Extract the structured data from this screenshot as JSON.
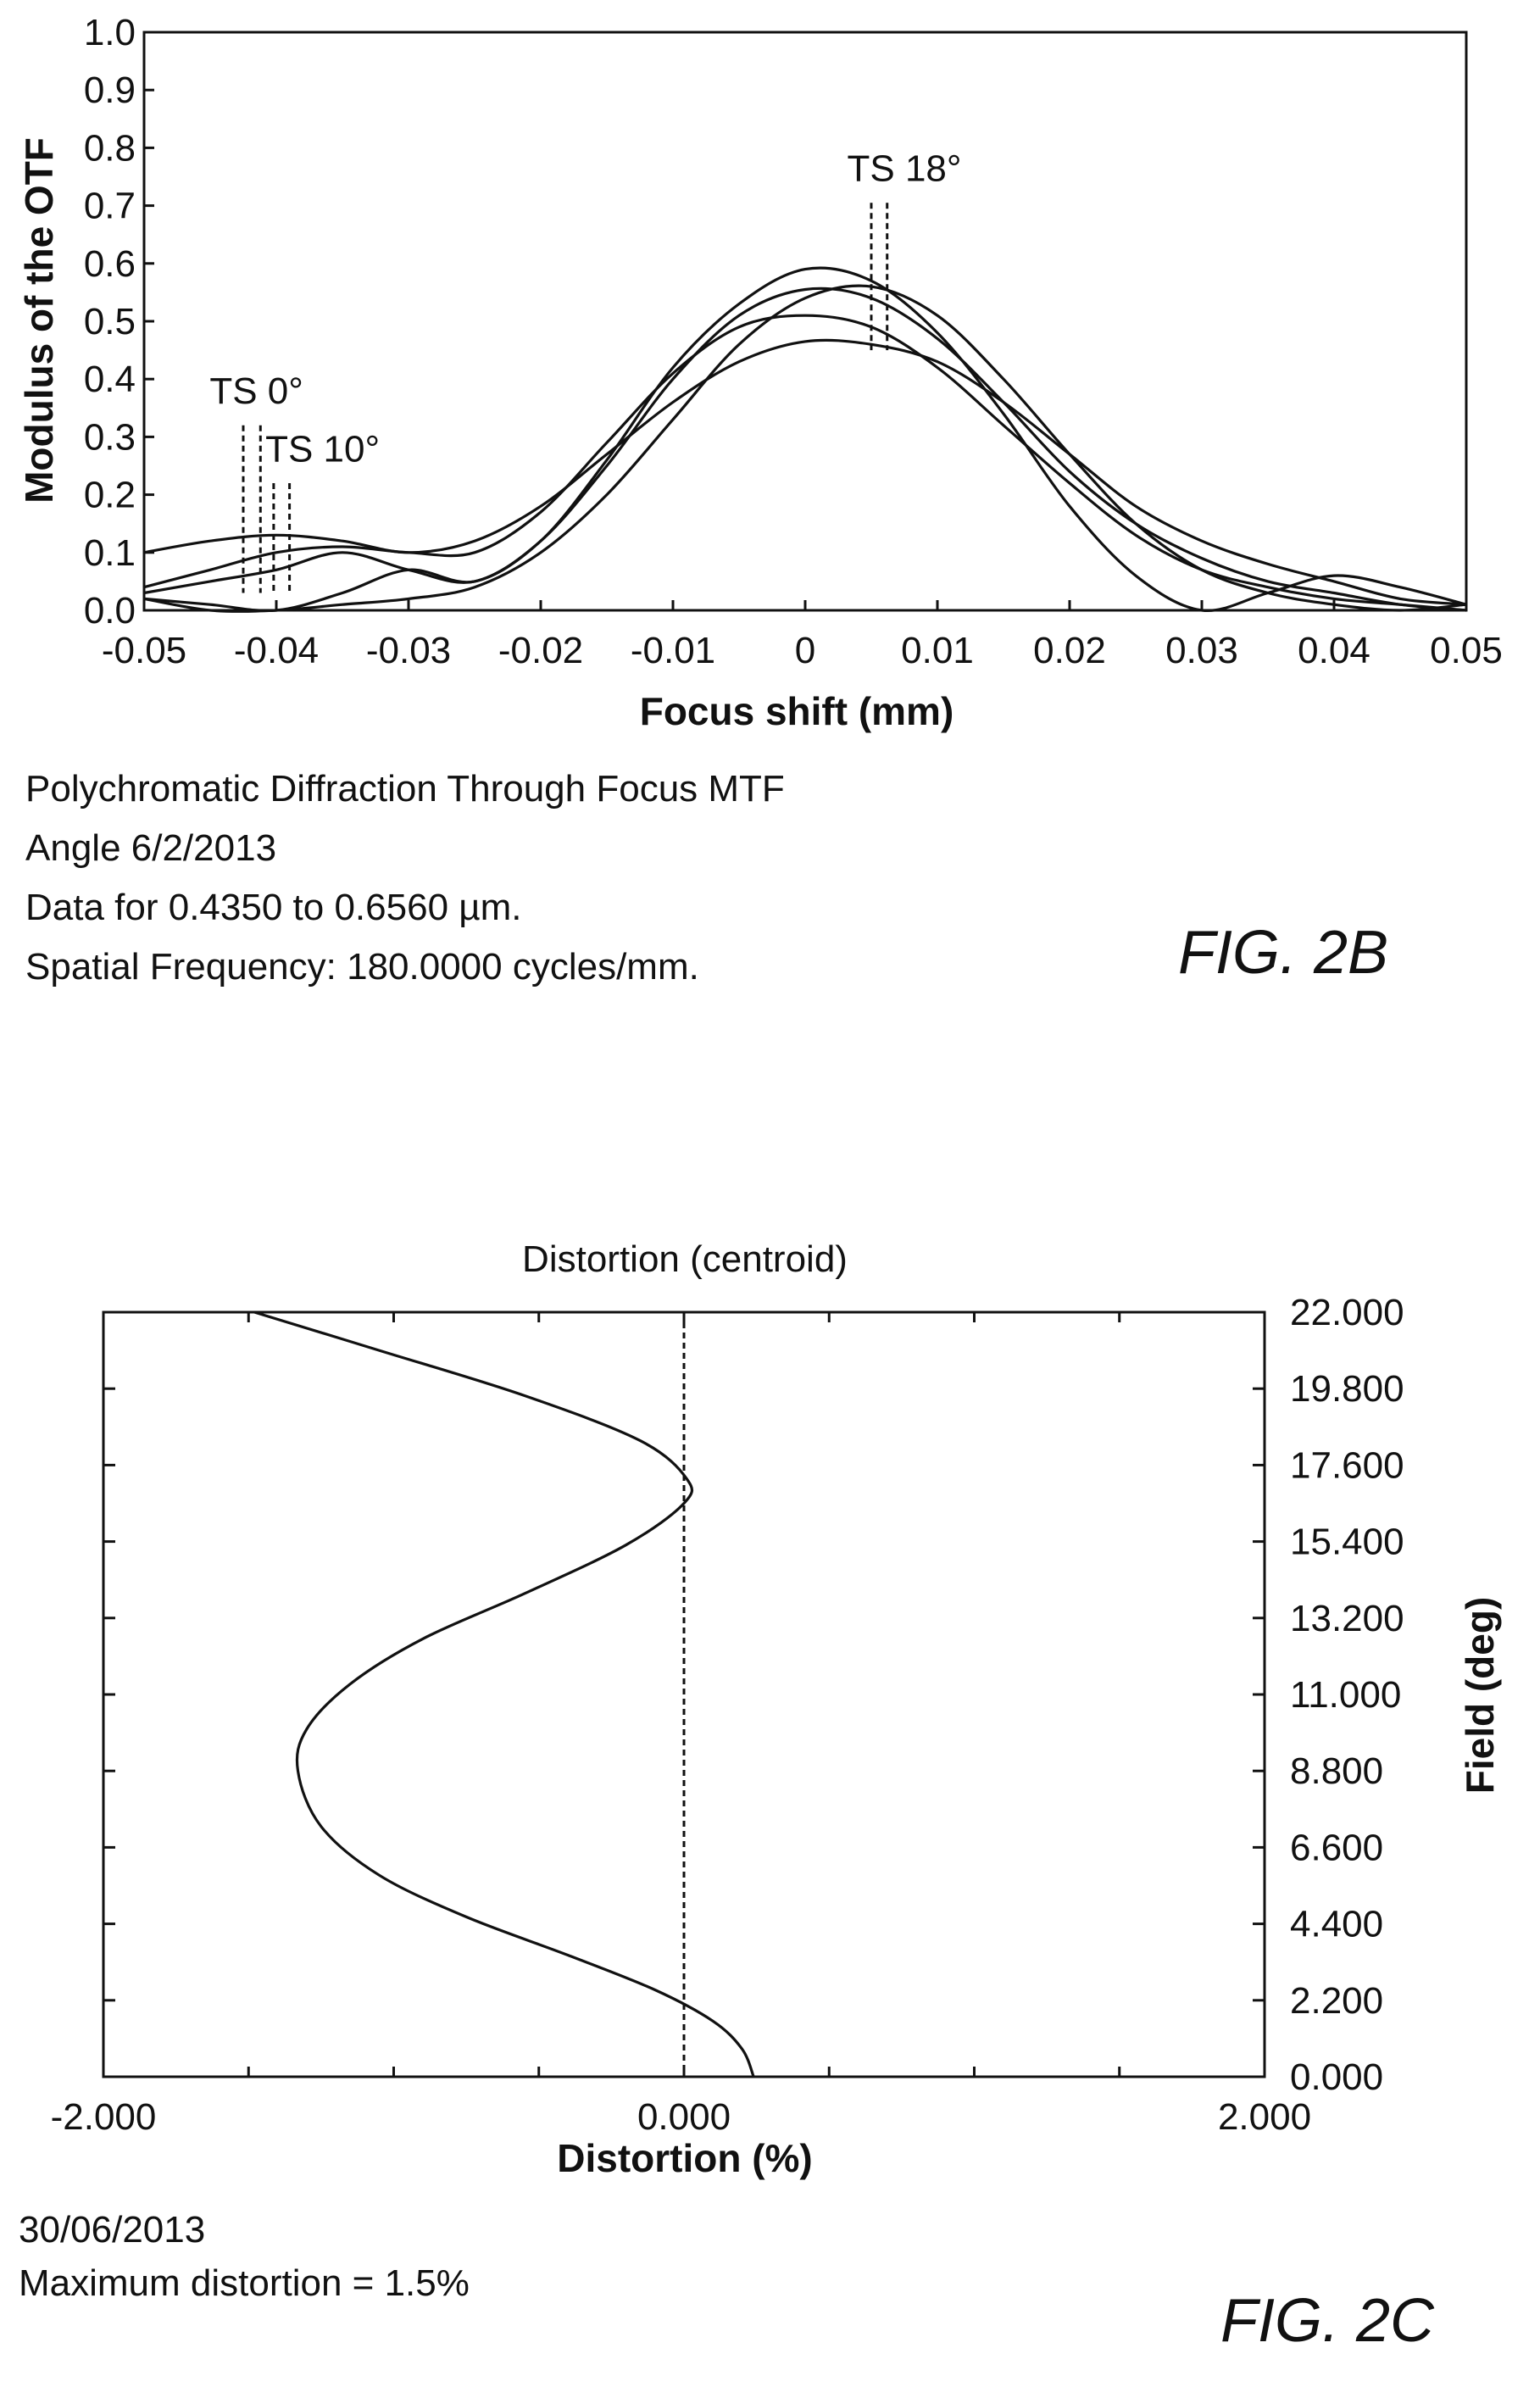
{
  "chart_data": [
    {
      "type": "line",
      "figure_label": "FIG. 2B",
      "xlabel": "Focus shift  (mm)",
      "ylabel": "Modulus of the OTF",
      "xlim": [
        -0.05,
        0.05
      ],
      "ylim": [
        0.0,
        1.0
      ],
      "x_ticks": [
        "-0.05",
        "-0.04",
        "-0.03",
        "-0.02",
        "-0.01",
        "0",
        "0.01",
        "0.02",
        "0.03",
        "0.04",
        "0.05"
      ],
      "y_ticks": [
        "0.0",
        "0.1",
        "0.2",
        "0.3",
        "0.4",
        "0.5",
        "0.6",
        "0.7",
        "0.8",
        "0.9",
        "1.0"
      ],
      "annotations": [
        {
          "text": "TS 0°",
          "x": -0.0415,
          "dash_x": [
            -0.0425,
            -0.0412
          ]
        },
        {
          "text": "TS 10°",
          "x": -0.0365,
          "dash_x": [
            -0.0402,
            -0.039
          ]
        },
        {
          "text": "TS 18°",
          "x": 0.0075,
          "dash_x": [
            0.005,
            0.0062
          ]
        }
      ],
      "series": [
        {
          "x": [
            -0.05,
            -0.045,
            -0.04,
            -0.035,
            -0.03,
            -0.025,
            -0.02,
            -0.015,
            -0.01,
            -0.005,
            0,
            0.005,
            0.01,
            0.015,
            0.02,
            0.025,
            0.03,
            0.035,
            0.04,
            0.045,
            0.05
          ],
          "y": [
            0.1,
            0.12,
            0.13,
            0.12,
            0.1,
            0.12,
            0.18,
            0.27,
            0.36,
            0.43,
            0.465,
            0.46,
            0.43,
            0.36,
            0.27,
            0.18,
            0.12,
            0.08,
            0.05,
            0.02,
            0.01
          ]
        },
        {
          "x": [
            -0.05,
            -0.045,
            -0.04,
            -0.035,
            -0.03,
            -0.025,
            -0.02,
            -0.015,
            -0.01,
            -0.005,
            0,
            0.005,
            0.01,
            0.015,
            0.02,
            0.025,
            0.03,
            0.035,
            0.04,
            0.045,
            0.05
          ],
          "y": [
            0.04,
            0.07,
            0.1,
            0.11,
            0.1,
            0.1,
            0.17,
            0.29,
            0.41,
            0.49,
            0.51,
            0.49,
            0.42,
            0.32,
            0.22,
            0.13,
            0.07,
            0.04,
            0.02,
            0.01,
            0.0
          ]
        },
        {
          "x": [
            -0.05,
            -0.045,
            -0.04,
            -0.035,
            -0.03,
            -0.025,
            -0.02,
            -0.015,
            -0.01,
            -0.005,
            0,
            0.005,
            0.01,
            0.015,
            0.02,
            0.025,
            0.03,
            0.035,
            0.04,
            0.045,
            0.05
          ],
          "y": [
            0.03,
            0.05,
            0.07,
            0.1,
            0.07,
            0.05,
            0.12,
            0.25,
            0.4,
            0.51,
            0.555,
            0.54,
            0.47,
            0.36,
            0.24,
            0.15,
            0.09,
            0.05,
            0.03,
            0.01,
            0.0
          ]
        },
        {
          "x": [
            -0.05,
            -0.045,
            -0.04,
            -0.035,
            -0.03,
            -0.025,
            -0.02,
            -0.015,
            -0.01,
            -0.005,
            0,
            0.005,
            0.01,
            0.015,
            0.02,
            0.025,
            0.03,
            0.035,
            0.04,
            0.045,
            0.05
          ],
          "y": [
            0.02,
            0.01,
            0.0,
            0.03,
            0.07,
            0.05,
            0.12,
            0.26,
            0.42,
            0.53,
            0.59,
            0.57,
            0.48,
            0.34,
            0.18,
            0.06,
            0.0,
            0.03,
            0.06,
            0.04,
            0.01
          ]
        },
        {
          "x": [
            -0.05,
            -0.045,
            -0.04,
            -0.035,
            -0.03,
            -0.025,
            -0.02,
            -0.015,
            -0.01,
            -0.005,
            0,
            0.005,
            0.01,
            0.015,
            0.02,
            0.025,
            0.03,
            0.035,
            0.04,
            0.045,
            0.05
          ],
          "y": [
            0.02,
            0.0,
            0.0,
            0.01,
            0.02,
            0.04,
            0.1,
            0.2,
            0.33,
            0.46,
            0.54,
            0.56,
            0.51,
            0.4,
            0.27,
            0.15,
            0.07,
            0.03,
            0.01,
            0.0,
            0.01
          ]
        }
      ],
      "notes": [
        "Polychromatic Diffraction Through Focus MTF",
        "Angle    6/2/2013",
        "Data for 0.4350 to 0.6560 µm.",
        "Spatial Frequency: 180.0000 cycles/mm."
      ]
    },
    {
      "type": "line",
      "figure_label": "FIG. 2C",
      "title": "Distortion (centroid)",
      "xlabel": "Distortion (%)",
      "ylabel": "Field (deg)",
      "xlim": [
        -2.0,
        2.0
      ],
      "ylim": [
        0.0,
        22.0
      ],
      "x_ticks": [
        "-2.000",
        "0.000",
        "2.000"
      ],
      "y_ticks": [
        "0.000",
        "2.200",
        "4.400",
        "6.600",
        "8.800",
        "11.000",
        "13.200",
        "15.400",
        "17.600",
        "19.800",
        "22.000"
      ],
      "reference_line_x": 0.0,
      "series": [
        {
          "x": [
            0.24,
            0.2,
            0.1,
            -0.1,
            -0.4,
            -0.75,
            -1.05,
            -1.25,
            -1.33,
            -1.3,
            -1.15,
            -0.9,
            -0.55,
            -0.2,
            0.0,
            0.01,
            -0.15,
            -0.55,
            -1.05,
            -1.48
          ],
          "y": [
            0.0,
            0.8,
            1.6,
            2.5,
            3.5,
            4.6,
            5.8,
            7.2,
            8.8,
            10.0,
            11.3,
            12.6,
            13.9,
            15.3,
            16.5,
            17.2,
            18.3,
            19.6,
            20.9,
            22.0
          ]
        }
      ],
      "notes": [
        "30/06/2013",
        "Maximum distortion = 1.5%"
      ]
    }
  ]
}
